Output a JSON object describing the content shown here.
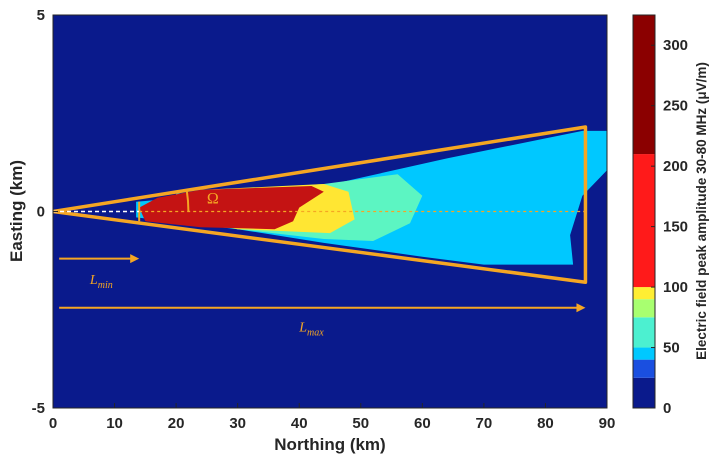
{
  "chart_data": {
    "type": "heatmap",
    "title": "",
    "xlabel": "Northing (km)",
    "ylabel": "Easting (km)",
    "xlim": [
      0,
      90
    ],
    "ylim": [
      -5,
      5
    ],
    "xticks": [
      "0",
      "10",
      "20",
      "30",
      "40",
      "50",
      "60",
      "70",
      "80",
      "90"
    ],
    "yticks": [
      "5",
      "0",
      "-5"
    ],
    "background_color": "#0a1a8c",
    "field_regions": [
      {
        "name_hint": "weak-field",
        "level": 30,
        "color": "#00c8ff",
        "polygon": [
          [
            13.5,
            0.25
          ],
          [
            44,
            0.65
          ],
          [
            64,
            1.35
          ],
          [
            86,
            2.05
          ],
          [
            90,
            2.05
          ],
          [
            90,
            1.05
          ],
          [
            86,
            0.4
          ],
          [
            84,
            -0.6
          ],
          [
            84.5,
            -1.35
          ],
          [
            70,
            -1.35
          ],
          [
            60,
            -1.15
          ],
          [
            44,
            -0.8
          ],
          [
            30,
            -0.45
          ],
          [
            13.5,
            -0.15
          ]
        ]
      },
      {
        "name_hint": "moderate-field",
        "level": 55,
        "color": "#5cf5c2",
        "polygon": [
          [
            20,
            0.45
          ],
          [
            44,
            0.7
          ],
          [
            56,
            0.95
          ],
          [
            60,
            0.4
          ],
          [
            58,
            -0.3
          ],
          [
            52,
            -0.75
          ],
          [
            44,
            -0.7
          ],
          [
            30,
            -0.45
          ],
          [
            20,
            -0.2
          ]
        ]
      },
      {
        "name_hint": "strong-field",
        "level": 90,
        "color": "#ffe633",
        "polygon": [
          [
            24,
            0.55
          ],
          [
            44,
            0.7
          ],
          [
            48,
            0.5
          ],
          [
            49,
            -0.2
          ],
          [
            45,
            -0.55
          ],
          [
            30,
            -0.45
          ],
          [
            24,
            -0.25
          ]
        ]
      },
      {
        "name_hint": "peak-field",
        "level": 200,
        "color": "#c41313",
        "polygon": [
          [
            14,
            0.1
          ],
          [
            17,
            0.35
          ],
          [
            24,
            0.55
          ],
          [
            42,
            0.65
          ],
          [
            44,
            0.5
          ],
          [
            40,
            0.1
          ],
          [
            39,
            -0.25
          ],
          [
            36,
            -0.45
          ],
          [
            24,
            -0.4
          ],
          [
            15,
            -0.25
          ]
        ]
      }
    ],
    "overlay": {
      "color": "#f5a623",
      "cone_apex": [
        0,
        0
      ],
      "cone_top": [
        86.5,
        2.15
      ],
      "cone_bottom": [
        86.5,
        -1.8
      ],
      "inner_cone_x": 14,
      "inner_cone_halfwidth": 0.25,
      "center_line_y": 0,
      "lmin_arrow": {
        "x": [
          1,
          14
        ],
        "y": -1.2
      },
      "lmax_arrow": {
        "x": [
          1,
          86.5
        ],
        "y": -2.45
      },
      "lmin_label_pos": [
        6,
        -1.85
      ],
      "lmax_label_pos": [
        40,
        -3.05
      ],
      "omega_label_pos": [
        25,
        0.2
      ]
    },
    "annotations": {
      "omega": "Ω",
      "lmin_main": "L",
      "lmin_sub": "min",
      "lmax_main": "L",
      "lmax_sub": "max"
    },
    "colorbar": {
      "label": "Electric field peak amplitude 30-80 MHz (μV/m)",
      "range": [
        0,
        325
      ],
      "ticks": [
        "0",
        "50",
        "100",
        "150",
        "200",
        "250",
        "300"
      ],
      "bands": [
        {
          "from": 0,
          "to": 25,
          "color": "#0a1a8c"
        },
        {
          "from": 25,
          "to": 40,
          "color": "#1a4fe0"
        },
        {
          "from": 40,
          "to": 50,
          "color": "#00c8ff"
        },
        {
          "from": 50,
          "to": 75,
          "color": "#4cf0d0"
        },
        {
          "from": 75,
          "to": 90,
          "color": "#a8ff70"
        },
        {
          "from": 90,
          "to": 100,
          "color": "#ffee33"
        },
        {
          "from": 100,
          "to": 210,
          "color": "#ff1a1a"
        },
        {
          "from": 210,
          "to": 325,
          "color": "#8b0000"
        }
      ]
    }
  }
}
